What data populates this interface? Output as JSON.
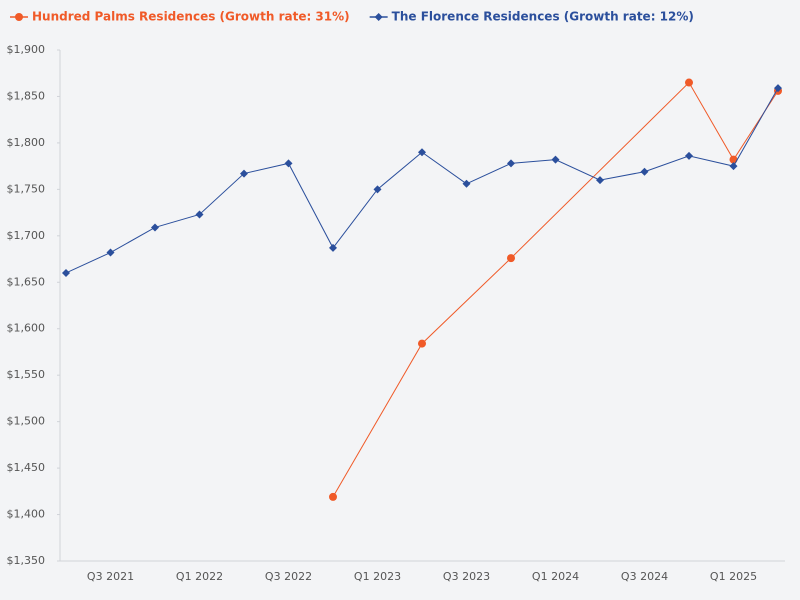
{
  "chart_data": {
    "type": "line",
    "categories": [
      null,
      "Q3 2021",
      null,
      "Q1 2022",
      null,
      "Q3 2022",
      null,
      "Q1 2023",
      null,
      "Q3 2023",
      null,
      "Q1 2024",
      null,
      "Q3 2024",
      null,
      "Q1 2025",
      null
    ],
    "series": [
      {
        "name": "Hundred Palms Residences (Growth rate: 31%)",
        "color": "#f05a28",
        "marker": "circle",
        "values": [
          null,
          null,
          null,
          null,
          null,
          null,
          1419,
          null,
          1584,
          null,
          1676,
          null,
          null,
          null,
          1865,
          1782,
          1856
        ]
      },
      {
        "name": "The Florence Residences (Growth rate: 12%)",
        "color": "#2b4f9c",
        "marker": "diamond",
        "values": [
          1660,
          1682,
          1709,
          1723,
          1767,
          1778,
          1687,
          1750,
          1790,
          1756,
          1778,
          1782,
          1760,
          1769,
          1786,
          1775,
          1859
        ]
      }
    ],
    "connect_gaps": true,
    "ylim": [
      1350,
      1900
    ],
    "yticks": [
      {
        "value": 1350,
        "label": "$1,350"
      },
      {
        "value": 1400,
        "label": "$1,400"
      },
      {
        "value": 1450,
        "label": "$1,450"
      },
      {
        "value": 1500,
        "label": "$1,500"
      },
      {
        "value": 1550,
        "label": "$1,550"
      },
      {
        "value": 1600,
        "label": "$1,600"
      },
      {
        "value": 1650,
        "label": "$1,650"
      },
      {
        "value": 1700,
        "label": "$1,700"
      },
      {
        "value": 1750,
        "label": "$1,750"
      },
      {
        "value": 1800,
        "label": "$1,800"
      },
      {
        "value": 1850,
        "label": "$1,850"
      },
      {
        "value": 1900,
        "label": "$1,900"
      }
    ],
    "grid": false,
    "legend": "top-left"
  }
}
